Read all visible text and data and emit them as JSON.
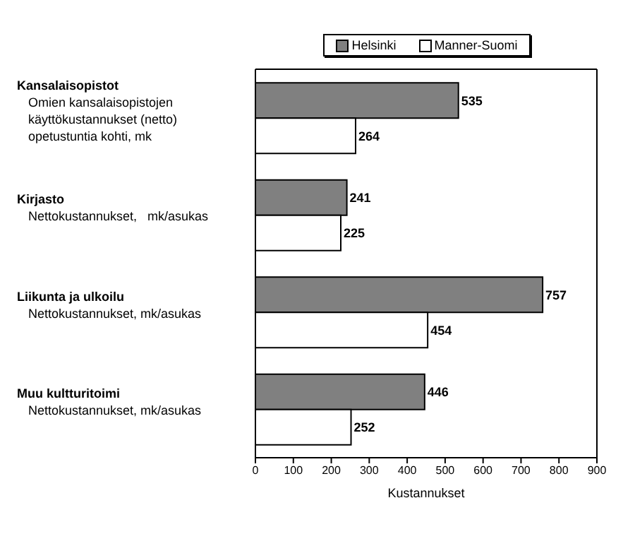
{
  "chart_data": {
    "type": "bar",
    "orientation": "horizontal",
    "categories": [
      "Kansalaisopistot\nOmien kansalaisopistojen\nkäyttökustannukset (netto)\nopetustuntia kohti, mk",
      "Kirjasto\nNettokustannukset,   mk/asukas",
      "Liikunta ja ulkoilu\nNettokustannukset, mk/asukas",
      "Muu kultturitoimi\nNettokustannukset, mk/asukas"
    ],
    "series": [
      {
        "name": "Helsinki",
        "color": "#808080",
        "values": [
          535,
          241,
          757,
          446
        ]
      },
      {
        "name": "Manner-Suomi",
        "color": "#ffffff",
        "values": [
          264,
          225,
          454,
          252
        ]
      }
    ],
    "xlim": [
      0,
      900
    ],
    "xticks": [
      0,
      100,
      200,
      300,
      400,
      500,
      600,
      700,
      800,
      900
    ],
    "xlabel": "Kustannukset",
    "legend": "top",
    "data_labels": true
  }
}
